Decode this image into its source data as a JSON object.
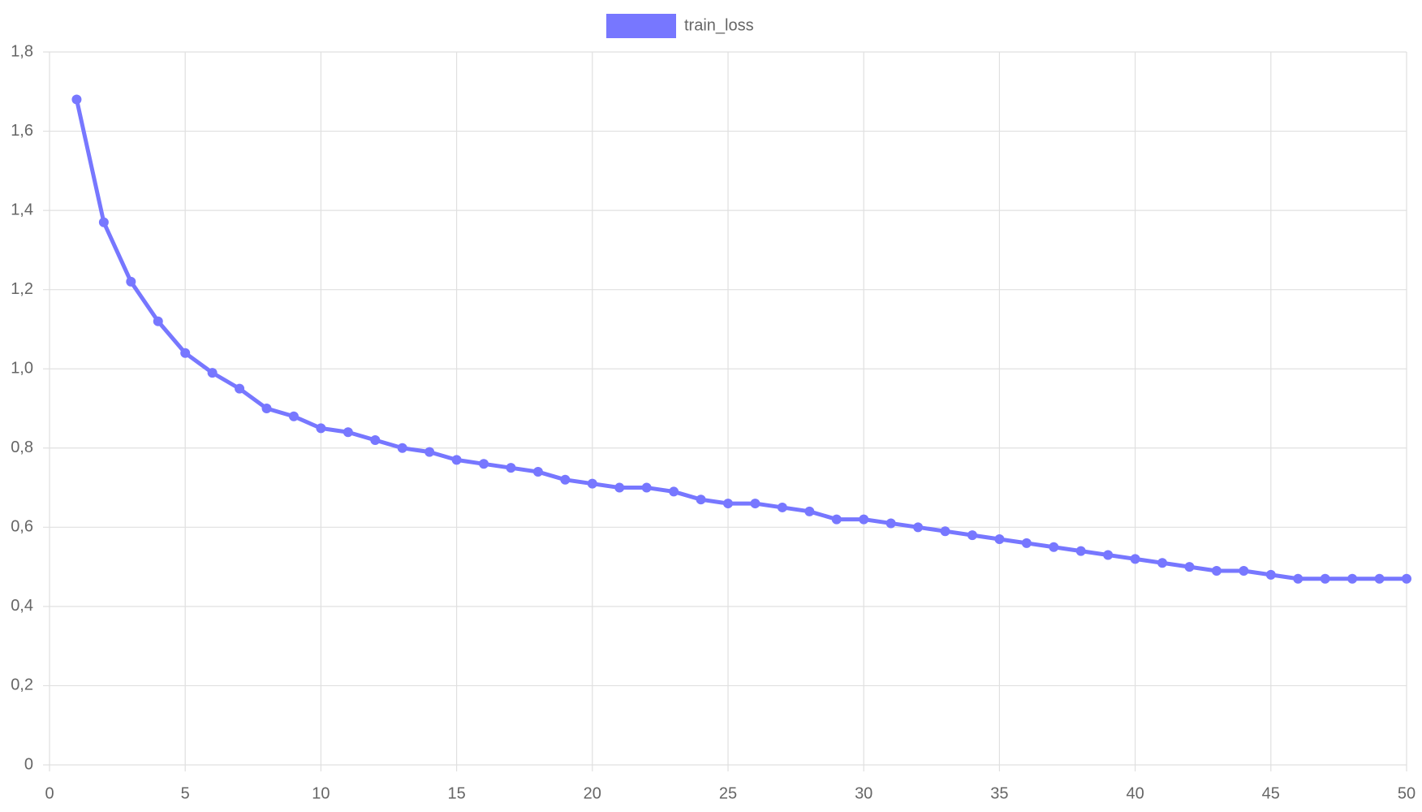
{
  "chart_data": {
    "type": "line",
    "x": [
      1,
      2,
      3,
      4,
      5,
      6,
      7,
      8,
      9,
      10,
      11,
      12,
      13,
      14,
      15,
      16,
      17,
      18,
      19,
      20,
      21,
      22,
      23,
      24,
      25,
      26,
      27,
      28,
      29,
      30,
      31,
      32,
      33,
      34,
      35,
      36,
      37,
      38,
      39,
      40,
      41,
      42,
      43,
      44,
      45,
      46,
      47,
      48,
      49,
      50
    ],
    "series": [
      {
        "name": "train_loss",
        "color": "#7777ff",
        "values": [
          1.68,
          1.37,
          1.22,
          1.12,
          1.04,
          0.99,
          0.95,
          0.9,
          0.88,
          0.85,
          0.84,
          0.82,
          0.8,
          0.79,
          0.77,
          0.76,
          0.75,
          0.74,
          0.72,
          0.71,
          0.7,
          0.7,
          0.69,
          0.67,
          0.66,
          0.66,
          0.65,
          0.64,
          0.62,
          0.62,
          0.61,
          0.6,
          0.59,
          0.58,
          0.57,
          0.56,
          0.55,
          0.54,
          0.53,
          0.52,
          0.51,
          0.5,
          0.49,
          0.49,
          0.48,
          0.47,
          0.47,
          0.47,
          0.47,
          0.47
        ]
      }
    ],
    "xlim": [
      0,
      50
    ],
    "xticks": [
      0,
      5,
      10,
      15,
      20,
      25,
      30,
      35,
      40,
      45,
      50
    ],
    "ylim": [
      0,
      1.8
    ],
    "yticks": [
      0,
      {
        "value": 0.2,
        "label": "0,2"
      },
      {
        "value": 0.4,
        "label": "0,4"
      },
      {
        "value": 0.6,
        "label": "0,6"
      },
      {
        "value": 0.8,
        "label": "0,8"
      },
      {
        "value": 1.0,
        "label": "1,0"
      },
      {
        "value": 1.2,
        "label": "1,2"
      },
      {
        "value": 1.4,
        "label": "1,4"
      },
      {
        "value": 1.6,
        "label": "1,6"
      },
      {
        "value": 1.8,
        "label": "1,8"
      }
    ],
    "grid": true,
    "legend": "top"
  }
}
